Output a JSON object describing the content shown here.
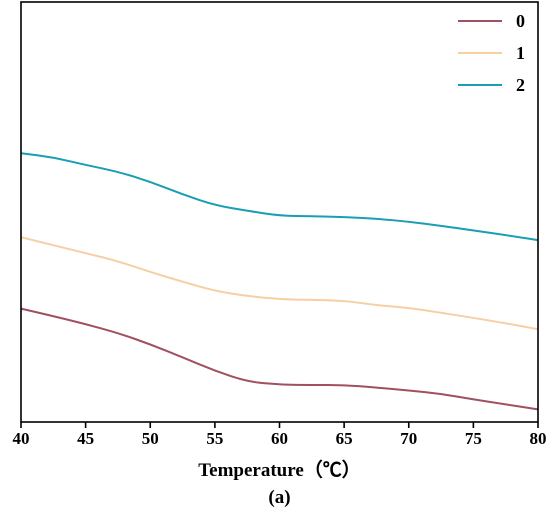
{
  "chart_data": {
    "type": "line",
    "xlabel": "Temperature（℃）",
    "panel_label": "(a)",
    "xlim": [
      40,
      80
    ],
    "ylim": [
      0,
      100
    ],
    "xticks": [
      40,
      45,
      50,
      55,
      60,
      65,
      70,
      75,
      80
    ],
    "y_ticks_labeled": false,
    "grid": false,
    "legend_position": "top-right",
    "series": [
      {
        "name": "0",
        "color": "#a05060",
        "x": [
          40,
          42.5,
          45,
          47.5,
          50,
          52.5,
          55,
          57.5,
          60,
          62.5,
          65,
          67.5,
          70,
          72.5,
          75,
          77.5,
          80
        ],
        "y": [
          27,
          25.2,
          23.3,
          21.2,
          18.5,
          15.4,
          12.2,
          9.6,
          8.9,
          8.8,
          8.8,
          8.2,
          7.5,
          6.7,
          5.4,
          4.2,
          3.0
        ]
      },
      {
        "name": "1",
        "color": "#f7cfa5",
        "x": [
          40,
          42.5,
          45,
          47.5,
          50,
          52.5,
          55,
          57.5,
          60,
          62.5,
          65,
          67.5,
          70,
          72.5,
          75,
          77.5,
          80
        ],
        "y": [
          44,
          42.1,
          40.2,
          38.3,
          35.7,
          33.4,
          31.2,
          30.0,
          29.2,
          29.1,
          28.9,
          27.8,
          27.2,
          26.0,
          24.8,
          23.5,
          22.1
        ]
      },
      {
        "name": "2",
        "color": "#1a9eb5",
        "x": [
          40,
          42.5,
          45,
          47.5,
          50,
          52.5,
          55,
          57.5,
          60,
          62.5,
          65,
          67.5,
          70,
          72.5,
          75,
          77.5,
          80
        ],
        "y": [
          64,
          63,
          61.2,
          59.6,
          57.2,
          54.2,
          51.6,
          50.3,
          49.1,
          49.0,
          48.8,
          48.4,
          47.7,
          46.7,
          45.6,
          44.5,
          43.3
        ]
      }
    ]
  }
}
